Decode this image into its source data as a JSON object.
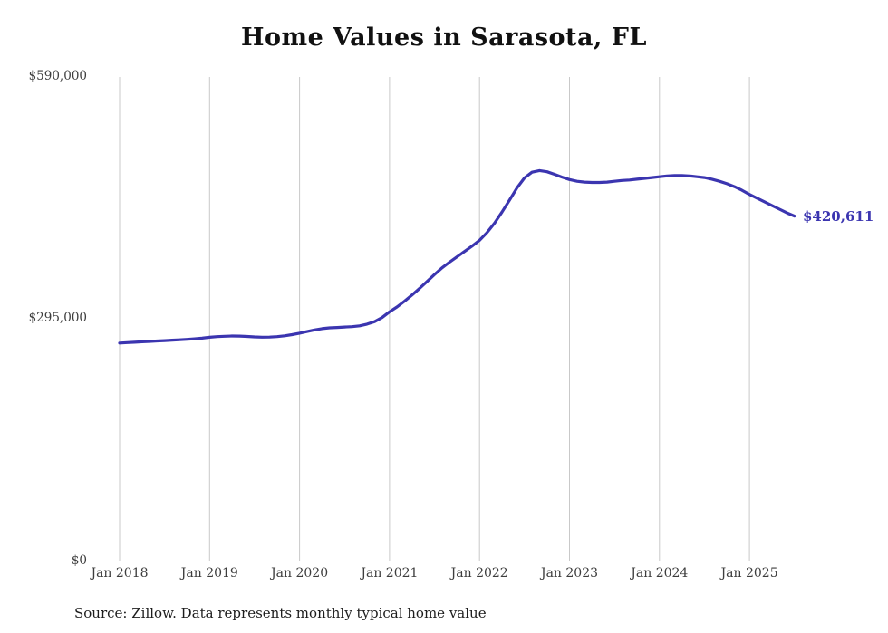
{
  "page": {
    "background": "#ffffff"
  },
  "chart_data": {
    "type": "line",
    "title": "Home Values in Sarasota, FL",
    "source_note": "Source: Zillow. Data represents monthly typical home value",
    "end_label": "$420,611",
    "final_value": 420611,
    "line_color": "#3b35b0",
    "gridline_color": "#c9c9c9",
    "text_color": "#3d3d3d",
    "ylim": [
      0,
      590000
    ],
    "ytick_labels": [
      "$590,000",
      "$295,000",
      "$0"
    ],
    "xtick_labels": [
      "Jan 2018",
      "Jan 2019",
      "Jan 2020",
      "Jan 2021",
      "Jan 2022",
      "Jan 2023",
      "Jan 2024",
      "Jan 2025"
    ],
    "x_start": "Jan 2018",
    "x_end": "Jul 2025",
    "x_interval": "monthly",
    "legend": "none",
    "grid": "vertical-only",
    "values": [
      266000,
      266500,
      267000,
      267500,
      268000,
      268500,
      269000,
      269500,
      270000,
      270500,
      271200,
      272000,
      273000,
      273800,
      274300,
      274600,
      274500,
      274000,
      273500,
      273200,
      273300,
      273800,
      274800,
      276200,
      278000,
      280000,
      282000,
      283500,
      284500,
      285000,
      285500,
      286000,
      287000,
      289000,
      292000,
      297000,
      304000,
      310000,
      317000,
      324500,
      332500,
      341000,
      349500,
      357500,
      364500,
      371000,
      377500,
      384000,
      391000,
      400500,
      412000,
      425500,
      440000,
      455000,
      467000,
      474000,
      476000,
      474500,
      471500,
      468000,
      465000,
      463000,
      462000,
      461500,
      461500,
      462000,
      463000,
      464000,
      464500,
      465500,
      466500,
      467500,
      468500,
      469500,
      470000,
      470000,
      469500,
      468500,
      467500,
      465500,
      463000,
      460000,
      456500,
      452000,
      447000,
      442500,
      438000,
      433500,
      429000,
      424500,
      420611
    ]
  }
}
